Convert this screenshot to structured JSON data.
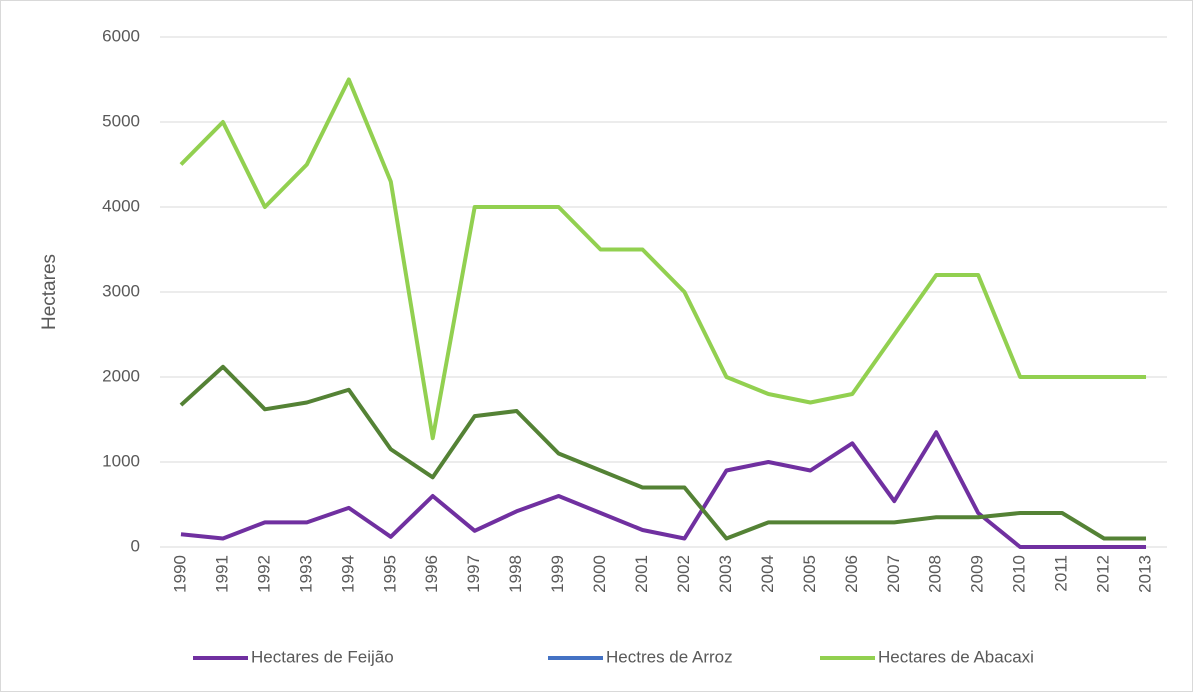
{
  "chart_data": {
    "type": "line",
    "ylabel": "Hectares",
    "categories": [
      "1990",
      "1991",
      "1992",
      "1993",
      "1994",
      "1995",
      "1996",
      "1997",
      "1998",
      "1999",
      "2000",
      "2001",
      "2002",
      "2003",
      "2004",
      "2005",
      "2006",
      "2007",
      "2008",
      "2009",
      "2010",
      "2011",
      "2012",
      "2013"
    ],
    "series": [
      {
        "name": "Hectares de Feijão",
        "color": "#7030a0",
        "values": [
          150,
          100,
          290,
          290,
          460,
          120,
          600,
          190,
          420,
          600,
          400,
          200,
          100,
          900,
          1000,
          900,
          1220,
          540,
          1350,
          400,
          0,
          0,
          0,
          0
        ]
      },
      {
        "name": "Hectres de Arroz",
        "color": "#4472c4",
        "values": [
          null,
          null,
          null,
          null,
          null,
          null,
          null,
          null,
          null,
          null,
          null,
          null,
          null,
          null,
          null,
          null,
          null,
          null,
          null,
          null,
          null,
          null,
          null,
          null
        ]
      },
      {
        "name": "Hectares de Abacaxi",
        "color": "#92d050",
        "values": [
          4500,
          5000,
          4000,
          4500,
          5500,
          4300,
          1280,
          4000,
          4000,
          4000,
          3500,
          3500,
          3000,
          2000,
          1800,
          1700,
          1800,
          2500,
          3200,
          3200,
          2000,
          2000,
          2000,
          2000
        ]
      },
      {
        "color": "#548235",
        "values": [
          1670,
          2120,
          1620,
          1700,
          1850,
          1150,
          820,
          1540,
          1600,
          1100,
          900,
          700,
          700,
          100,
          290,
          290,
          290,
          290,
          350,
          350,
          400,
          400,
          100,
          100
        ]
      }
    ],
    "ylim": [
      0,
      6000
    ],
    "yticks": [
      0,
      1000,
      2000,
      3000,
      4000,
      5000,
      6000
    ],
    "grid": true,
    "legend": "bottom"
  }
}
